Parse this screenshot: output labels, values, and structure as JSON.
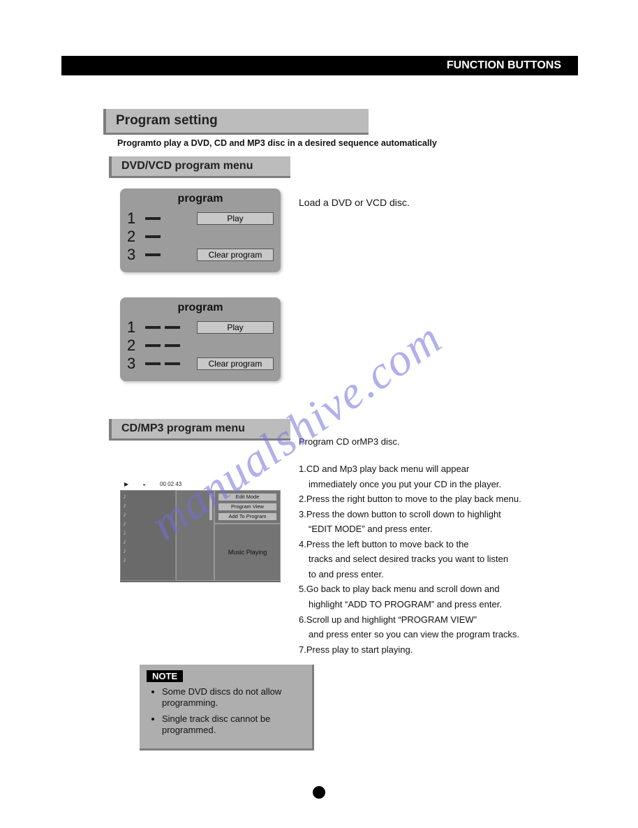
{
  "header": {
    "title": "FUNCTION BUTTONS"
  },
  "titles": {
    "main": "Program setting",
    "intro": "Programto play  a DVD, CD  and MP3 disc in a desired sequence automatically",
    "dvd_sub": "DVD/VCD program  menu",
    "cd_sub": "CD/MP3  program  menu"
  },
  "program_box": {
    "title": "program",
    "rows": [
      "1",
      "2",
      "3"
    ],
    "play_label": "Play",
    "clear_label": "Clear  program"
  },
  "side_text": "Load a DVD or VCD  disc.",
  "cd_screen": {
    "time": "00 02 43",
    "menu_items": [
      "Edit Mode",
      "Program View",
      "Add To Program"
    ],
    "playing": "Music Playing"
  },
  "instructions": {
    "heading": "Program CD orMP3 disc.",
    "steps": [
      "1.CD  and  Mp3  play  back  menu  will  appear",
      "   immediately  once  you  put  your  CD  in  the  player.",
      "2.Press  the  right  button  to  move  to  the  play  back  menu.",
      "3.Press  the  down  button  to  scroll down to highlight",
      "   “EDIT MODE” and press enter.",
      "4.Press the   left   button to move back to the",
      "   tracks and select desired tracks you want to listen",
      "   to and press enter.",
      "5.Go back to play back menu and scroll down and",
      "   highlight “ADD TO PROGRAM” and press enter.",
      "6.Scroll up and highlight “PROGRAM VIEW”",
      "   and  press enter  so  you  can  view the program tracks.",
      "7.Press  play  to  start  playing."
    ]
  },
  "note": {
    "label": "NOTE",
    "items": [
      "Some DVD discs   do not allow programming.",
      "Single track disc  cannot be programmed."
    ]
  },
  "watermark": "manualshive.com",
  "colors": {
    "header_bg": "#000000",
    "panel_bg": "#bcbcbc",
    "box_bg": "#9c9c9c",
    "watermark": "rgba(115,110,220,0.55)"
  }
}
